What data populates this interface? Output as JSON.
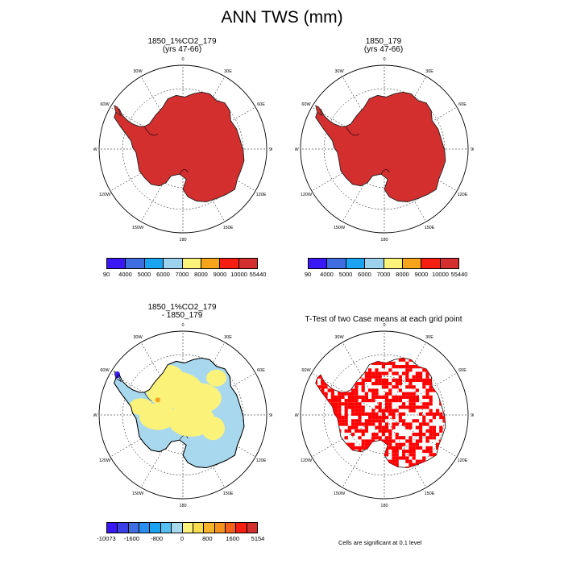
{
  "title": "ANN TWS (mm)",
  "panels": [
    {
      "id": "p1",
      "title_line1": "1850_1%CO2_179",
      "title_line2": "(yrs 47-66)"
    },
    {
      "id": "p2",
      "title_line1": "1850_179",
      "title_line2": "(yrs 47-66)"
    },
    {
      "id": "p3",
      "title_line1": "1850_1%CO2_179",
      "title_line2": "- 1850_179"
    },
    {
      "id": "p4",
      "title_line1": "T-Test of two Case means at each grid point",
      "title_line2": ""
    }
  ],
  "longitude_labels": [
    "0",
    "30E",
    "60E",
    "90E",
    "120E",
    "150E",
    "180",
    "150W",
    "120W",
    "90W",
    "60W",
    "30W"
  ],
  "colorbar_abs": {
    "labels": [
      "90",
      "4000",
      "5000",
      "6000",
      "7000",
      "8000",
      "9000",
      "10000",
      "55440"
    ],
    "colors": [
      "#3a18f5",
      "#3f6ee0",
      "#1aa3f0",
      "#9dd2ee",
      "#fbf27a",
      "#f5a41c",
      "#f51e10",
      "#d32f2f"
    ]
  },
  "colorbar_diff": {
    "labels": [
      "-10073",
      "-1600",
      "-800",
      "0",
      "800",
      "1600",
      "5154"
    ],
    "colors": [
      "#3a18f5",
      "#3b3fe6",
      "#3f6ee0",
      "#2a8ff0",
      "#1aa3f0",
      "#56c0f2",
      "#a8d8ee",
      "#fbf27a",
      "#f7dc4e",
      "#f5b52a",
      "#f5931c",
      "#f5601a",
      "#f51e10",
      "#d32f2f"
    ]
  },
  "footnote": "Cells are significant at 0.1 level",
  "colors": {
    "ice_fill": "#d32f2f",
    "diff_main": "#a8d8ee",
    "diff_yellow": "#fbf27a",
    "sig_red": "#ff0000"
  }
}
